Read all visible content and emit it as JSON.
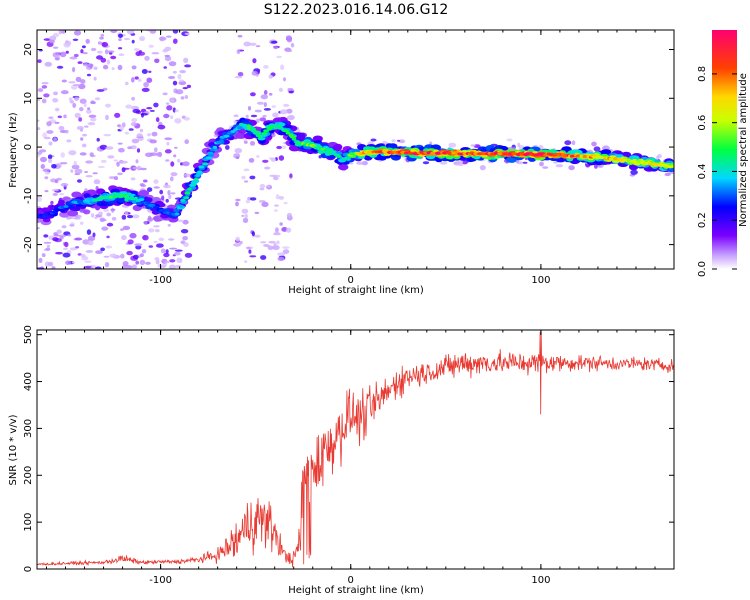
{
  "figure": {
    "title": "S122.2023.016.14.06.G12"
  },
  "chart_data": [
    {
      "type": "heatmap",
      "title": "S122.2023.016.14.06.G12",
      "xlabel": "Height of straight line (km)",
      "ylabel": "Frequency (Hz)",
      "xlim": [
        -165,
        170
      ],
      "ylim": [
        -25,
        24
      ],
      "x_ticks": [
        -100,
        0,
        100
      ],
      "y_ticks": [
        -20,
        -10,
        0,
        10,
        20
      ],
      "colorbar": {
        "label": "Normalized spectral amplitude",
        "range": [
          0,
          0.98
        ],
        "ticks": [
          "0.0",
          "0.2",
          "0.4",
          "0.6",
          "0.8"
        ],
        "tick_values": [
          0.0,
          0.2,
          0.4,
          0.6,
          0.8
        ],
        "colormap": "rainbow"
      },
      "ridge": {
        "x": [
          -160,
          -150,
          -140,
          -130,
          -120,
          -110,
          -100,
          -92,
          -85,
          -78,
          -70,
          -63,
          -57,
          -52,
          -47,
          -42,
          -38,
          -33,
          -28,
          -22,
          -15,
          -8,
          -4,
          0,
          10,
          20,
          30,
          40,
          50,
          60,
          70,
          80,
          90,
          100,
          110,
          120,
          130,
          140,
          150,
          160,
          168
        ],
        "y": [
          -14,
          -12,
          -11,
          -10.5,
          -10,
          -11,
          -13,
          -14,
          -9,
          -4,
          1,
          3,
          4.5,
          4,
          2,
          4,
          4.5,
          3,
          1,
          0.5,
          -0.5,
          -1.5,
          -2.5,
          -1.5,
          -1,
          -1,
          -1.2,
          -1.2,
          -1.3,
          -1.3,
          -1.4,
          -1.4,
          -1.5,
          -1.5,
          -1.6,
          -1.8,
          -2,
          -2.5,
          -3,
          -3.5,
          -4
        ],
        "amplitude": [
          0.25,
          0.3,
          0.35,
          0.45,
          0.5,
          0.35,
          0.3,
          0.35,
          0.45,
          0.4,
          0.35,
          0.35,
          0.4,
          0.5,
          0.45,
          0.45,
          0.5,
          0.45,
          0.5,
          0.55,
          0.5,
          0.45,
          0.4,
          0.55,
          0.8,
          0.85,
          0.9,
          0.88,
          0.9,
          0.85,
          0.9,
          0.9,
          0.92,
          0.9,
          0.85,
          0.8,
          0.75,
          0.7,
          0.65,
          0.7,
          0.65
        ]
      }
    },
    {
      "type": "line",
      "xlabel": "Height of straight line (km)",
      "ylabel": "SNR (10 * v/v)",
      "xlim": [
        -165,
        170
      ],
      "ylim": [
        0,
        510
      ],
      "x_ticks": [
        -100,
        0,
        100
      ],
      "y_ticks": [
        0,
        100,
        200,
        300,
        400,
        500
      ],
      "color": "#e83a32",
      "series": [
        {
          "name": "SNR",
          "x": [
            -165,
            -150,
            -130,
            -120,
            -110,
            -90,
            -80,
            -70,
            -60,
            -55,
            -50,
            -45,
            -40,
            -35,
            -30,
            -27,
            -25,
            -20,
            -15,
            -10,
            -5,
            0,
            5,
            10,
            15,
            20,
            25,
            30,
            40,
            50,
            60,
            70,
            80,
            90,
            100,
            110,
            120,
            130,
            140,
            150,
            160,
            170
          ],
          "values": [
            10,
            12,
            14,
            22,
            14,
            16,
            20,
            30,
            60,
            90,
            110,
            100,
            80,
            30,
            20,
            60,
            200,
            220,
            240,
            270,
            300,
            330,
            320,
            340,
            360,
            380,
            400,
            410,
            420,
            430,
            440,
            440,
            440,
            440,
            440,
            440,
            440,
            440,
            438,
            438,
            436,
            434
          ],
          "noise": [
            2,
            3,
            3,
            8,
            3,
            4,
            6,
            12,
            40,
            50,
            55,
            50,
            40,
            12,
            15,
            40,
            70,
            70,
            65,
            60,
            55,
            50,
            45,
            40,
            35,
            30,
            28,
            25,
            22,
            22,
            24,
            22,
            22,
            20,
            20,
            16,
            14,
            14,
            12,
            12,
            12,
            12
          ]
        }
      ]
    }
  ]
}
